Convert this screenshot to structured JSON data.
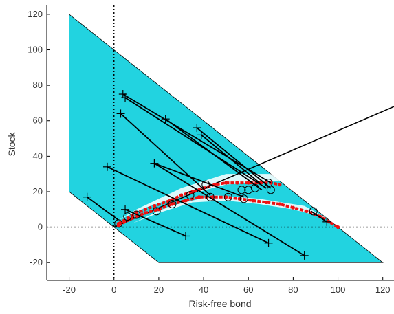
{
  "chart_data": {
    "type": "scatter",
    "title": "",
    "xlabel": "Risk-free bond",
    "ylabel": "Stock",
    "xlim": [
      -30,
      125
    ],
    "ylim": [
      -30,
      125
    ],
    "xticks": [
      -20,
      0,
      20,
      40,
      60,
      80,
      100,
      120
    ],
    "yticks": [
      -20,
      0,
      20,
      40,
      60,
      80,
      100,
      120
    ],
    "grid": false,
    "reference_lines": [
      {
        "axis": "x",
        "value": 0,
        "style": "dotted"
      },
      {
        "axis": "y",
        "value": 0,
        "style": "dotted"
      }
    ],
    "region": {
      "description_color": "#22d3e0",
      "vertices": [
        [
          -20,
          120
        ],
        [
          -20,
          20
        ],
        [
          20,
          -20
        ],
        [
          120,
          -20
        ]
      ]
    },
    "projection_ray": {
      "from": [
        0,
        0
      ],
      "to": [
        125,
        68
      ]
    },
    "segments": [
      {
        "from": [
          4,
          75
        ],
        "to": [
          70,
          25
        ]
      },
      {
        "from": [
          5,
          73
        ],
        "to": [
          68,
          22
        ]
      },
      {
        "from": [
          23,
          61
        ],
        "to": [
          66,
          21
        ]
      },
      {
        "from": [
          37,
          56
        ],
        "to": [
          70,
          22
        ]
      },
      {
        "from": [
          39,
          52
        ],
        "to": [
          65,
          25
        ]
      },
      {
        "from": [
          3,
          64
        ],
        "to": [
          43,
          18
        ]
      },
      {
        "from": [
          18,
          36
        ],
        "to": [
          58,
          17
        ]
      },
      {
        "from": [
          -3,
          34
        ],
        "to": [
          69,
          -9
        ]
      },
      {
        "from": [
          -12,
          17
        ],
        "to": [
          2,
          4
        ]
      },
      {
        "from": [
          18,
          36
        ],
        "to": [
          85,
          -16
        ]
      },
      {
        "from": [
          5,
          10
        ],
        "to": [
          32,
          -5
        ]
      },
      {
        "from": [
          88,
          9
        ],
        "to": [
          95,
          3
        ]
      }
    ],
    "plus_markers": [
      [
        4,
        75
      ],
      [
        5,
        73
      ],
      [
        23,
        61
      ],
      [
        37,
        56
      ],
      [
        39,
        52
      ],
      [
        3,
        64
      ],
      [
        18,
        36
      ],
      [
        -3,
        34
      ],
      [
        -12,
        17
      ],
      [
        5,
        10
      ],
      [
        32,
        -5
      ],
      [
        69,
        -9
      ],
      [
        85,
        -16
      ],
      [
        95,
        3
      ]
    ],
    "circle_markers": [
      [
        2,
        2
      ],
      [
        6,
        6
      ],
      [
        10,
        7
      ],
      [
        19,
        9
      ],
      [
        26,
        13
      ],
      [
        34,
        18
      ],
      [
        41,
        24
      ],
      [
        43,
        17
      ],
      [
        51,
        17
      ],
      [
        57,
        21
      ],
      [
        58,
        16
      ],
      [
        60,
        21
      ],
      [
        63,
        22
      ],
      [
        69,
        25
      ],
      [
        70,
        21
      ],
      [
        89,
        9
      ]
    ],
    "red_curve_lower": [
      [
        2,
        1
      ],
      [
        8,
        5
      ],
      [
        14,
        8
      ],
      [
        20,
        10
      ],
      [
        26,
        13
      ],
      [
        32,
        15
      ],
      [
        38,
        17
      ],
      [
        44,
        17
      ],
      [
        50,
        17
      ],
      [
        56,
        16
      ],
      [
        62,
        15
      ],
      [
        68,
        14
      ],
      [
        74,
        13
      ],
      [
        80,
        11
      ],
      [
        86,
        9
      ],
      [
        92,
        6
      ],
      [
        96,
        3
      ],
      [
        100,
        0
      ]
    ],
    "red_curve_upper": [
      [
        2,
        2
      ],
      [
        10,
        8
      ],
      [
        18,
        12
      ],
      [
        25,
        15
      ],
      [
        30,
        18
      ],
      [
        35,
        20
      ],
      [
        40,
        22
      ],
      [
        45,
        24
      ],
      [
        50,
        25
      ],
      [
        55,
        25
      ],
      [
        60,
        25
      ],
      [
        65,
        25
      ],
      [
        70,
        25
      ],
      [
        74,
        24
      ]
    ],
    "colors": {
      "region": "#22d3e0",
      "red_points": "#ee1111",
      "lines": "#000000"
    }
  }
}
